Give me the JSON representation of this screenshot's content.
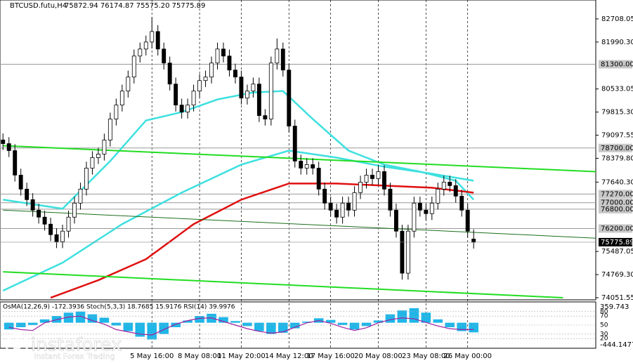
{
  "chart_data": {
    "type": "candlestick",
    "title": "BTCUSD.futu,H4",
    "header_prices": "75872.94 76174.87 75575.20 75775.89",
    "indicator_label": "OsMA(12,26,9) -172.3936 Stoch(5,3,3) 18.7685 15.9176 RSI(14) 39.9976",
    "watermark": "instaforex",
    "watermark_sub": "Instant Forex Trading",
    "xlim": [
      -0.5,
      99.5
    ],
    "xticks": [
      {
        "value": 25,
        "label": "5 May 16:00"
      },
      {
        "value": 33,
        "label": "8 May 08:00"
      },
      {
        "value": 40,
        "label": "11 May 20:00"
      },
      {
        "value": 48,
        "label": "14 May 12:00"
      },
      {
        "value": 55,
        "label": "17 May 16:00"
      },
      {
        "value": 63,
        "label": "20 May 08:00"
      },
      {
        "value": 71,
        "label": "23 May 08:00"
      },
      {
        "value": 78,
        "label": "26 May 00:00"
      }
    ],
    "ylim": [
      73986,
      83295
    ],
    "yticks": [
      82708.05,
      {
        "value": 81990.3,
        "label": "81990.30"
      },
      80533.05,
      {
        "value": 79815.3,
        "label": "79815.30"
      },
      79097.55,
      {
        "value": 78379.8,
        "label": "78379.80"
      },
      {
        "value": 77640.3,
        "label": "77640.30"
      },
      75487.05,
      {
        "value": 74769.3,
        "label": "74769.30"
      },
      74051.55
    ],
    "levels": [
      {
        "value": 81300,
        "label": "81300.00"
      },
      {
        "value": 78700,
        "label": "78700.00"
      },
      {
        "value": 77270,
        "label": "77270.00"
      },
      {
        "value": 77000,
        "label": "77000.00"
      },
      {
        "value": 76800,
        "label": "76800.00"
      },
      {
        "value": 76200,
        "label": "76200.00"
      }
    ],
    "current_price": 75775.89,
    "open": [
      78950,
      78836,
      78619,
      77858,
      77423,
      77096,
      76770,
      76553,
      76335,
      76009,
      75791,
      76118,
      76553,
      76988,
      77423,
      78075,
      78401,
      78510,
      78945,
      79598,
      80033,
      80468,
      80903,
      81555,
      81773,
      81990,
      82316,
      81773,
      81338,
      80685,
      80033,
      79815,
      80033,
      80468,
      80794,
      80903,
      81338,
      81773,
      81555,
      81120,
      80903,
      80250,
      80468,
      80685,
      79706,
      79598,
      81338,
      81773,
      81120,
      79380,
      78293,
      78075,
      78184,
      78075,
      77423,
      76988,
      76770,
      76553,
      76988,
      76770,
      77314,
      77640,
      77858,
      77749,
      77966,
      77423,
      76770,
      76118,
      74813,
      76118,
      76988,
      76770,
      76661,
      76988,
      77423,
      77640,
      77531,
      77205,
      76770,
      75872.94
    ],
    "high": [
      79150,
      79036,
      78819,
      78058,
      77623,
      77296,
      76970,
      76753,
      76535,
      76209,
      76318,
      76753,
      77188,
      77623,
      78275,
      78601,
      78710,
      79145,
      79798,
      80233,
      80668,
      81103,
      81755,
      81973,
      82190,
      82760,
      82516,
      81973,
      81538,
      80885,
      80233,
      80233,
      80668,
      80994,
      81103,
      81538,
      81973,
      81973,
      81755,
      81320,
      81103,
      80668,
      80885,
      80885,
      79906,
      81538,
      82100,
      81973,
      81320,
      79580,
      78493,
      78384,
      78384,
      78275,
      77623,
      77188,
      76970,
      77188,
      77188,
      77514,
      77840,
      78058,
      78058,
      78166,
      78166,
      77623,
      76970,
      76318,
      76318,
      77188,
      77188,
      76970,
      77188,
      77623,
      77840,
      77840,
      77731,
      77405,
      76970,
      76174.87
    ],
    "low": [
      78636,
      78419,
      77658,
      77223,
      76896,
      76570,
      76353,
      76135,
      75809,
      75591,
      75591,
      75918,
      76353,
      76788,
      77223,
      77875,
      78201,
      78310,
      78745,
      79398,
      79833,
      80268,
      80703,
      81355,
      81573,
      81790,
      81573,
      81138,
      80485,
      79833,
      79615,
      79615,
      79833,
      80268,
      80594,
      80703,
      81138,
      81355,
      80920,
      80703,
      80050,
      80050,
      80268,
      79506,
      79398,
      79398,
      81138,
      80920,
      79180,
      78093,
      77875,
      77875,
      77875,
      77223,
      76788,
      76570,
      76353,
      76353,
      76570,
      76570,
      77114,
      77440,
      77549,
      77549,
      77223,
      76570,
      75918,
      74613,
      74613,
      75918,
      76570,
      76461,
      76461,
      76788,
      77223,
      77331,
      77005,
      76570,
      75918,
      75575.2
    ],
    "close": [
      78836,
      78619,
      77858,
      77423,
      77096,
      76770,
      76553,
      76335,
      76009,
      75791,
      76118,
      76553,
      76988,
      77423,
      78075,
      78401,
      78510,
      78945,
      79598,
      80033,
      80468,
      80903,
      81555,
      81773,
      81990,
      82316,
      81773,
      81338,
      80685,
      80033,
      79815,
      80033,
      80468,
      80794,
      80903,
      81338,
      81773,
      81555,
      81120,
      80903,
      80250,
      80468,
      80685,
      79706,
      79598,
      81338,
      81773,
      81120,
      79380,
      78293,
      78075,
      78184,
      78075,
      77423,
      76988,
      76770,
      76553,
      76988,
      76770,
      77314,
      77640,
      77858,
      77749,
      77966,
      77423,
      76770,
      76118,
      74813,
      76118,
      76988,
      76770,
      76661,
      76988,
      77423,
      77640,
      77531,
      77205,
      76770,
      76118,
      75775.89
    ],
    "overlays": [
      {
        "color": "#3ee0e0",
        "width": 2.5,
        "x": [
          0,
          10,
          18,
          24,
          30,
          36,
          42,
          47,
          52,
          58,
          64,
          70,
          76,
          79
        ],
        "values": [
          77096,
          76814,
          78293,
          79554,
          79815,
          80207,
          80424,
          80468,
          79598,
          78619,
          78184,
          77966,
          77684,
          77096
        ]
      },
      {
        "color": "#3ee0e0",
        "width": 2.5,
        "x": [
          0,
          10,
          20,
          30,
          40,
          48,
          56,
          64,
          72,
          79
        ],
        "values": [
          74269,
          75139,
          76335,
          77314,
          78184,
          78619,
          78401,
          78119,
          77901,
          77684
        ]
      },
      {
        "color": "#e01010",
        "width": 2.5,
        "x": [
          8,
          16,
          24,
          32,
          40,
          48,
          56,
          64,
          72,
          79
        ],
        "values": [
          74051,
          74595,
          75248,
          76335,
          77096,
          77597,
          77597,
          77531,
          77466,
          77314
        ]
      },
      {
        "color": "#22dd22",
        "width": 2,
        "x": [
          0,
          99.5
        ],
        "values": [
          78771,
          77966
        ]
      },
      {
        "color": "#22dd22",
        "width": 2,
        "x": [
          0,
          94
        ],
        "values": [
          74856,
          74051
        ]
      },
      {
        "color": "#1a6e1a",
        "width": 1,
        "x": [
          0,
          99.5
        ],
        "values": [
          76770,
          75900
        ]
      }
    ],
    "osma": {
      "color": "#1fb6e8",
      "x": [
        1,
        3,
        5,
        7,
        9,
        11,
        13,
        15,
        17,
        19,
        21,
        23,
        25,
        27,
        29,
        31,
        33,
        35,
        37,
        39,
        41,
        43,
        45,
        47,
        49,
        51,
        53,
        55,
        57,
        59,
        61,
        63,
        65,
        67,
        69,
        71,
        73,
        75,
        77,
        79
      ],
      "values": [
        -120,
        -80,
        -40,
        60,
        120,
        180,
        200,
        150,
        90,
        -50,
        -150,
        -250,
        -300,
        -200,
        -80,
        40,
        120,
        160,
        100,
        30,
        -60,
        -150,
        -200,
        -180,
        -100,
        20,
        80,
        50,
        -40,
        -120,
        -60,
        40,
        150,
        220,
        260,
        180,
        60,
        -80,
        -150,
        -172.3936
      ],
      "ylim": [
        -444.1477,
        359.743
      ],
      "yticks": [
        359.743,
        -444.1477
      ]
    },
    "rsi": {
      "color": "#a020a0",
      "values": [
        45,
        40,
        38,
        55,
        62,
        68,
        70,
        60,
        52,
        40,
        35,
        30,
        28,
        40,
        52,
        60,
        65,
        66,
        58,
        50,
        42,
        36,
        32,
        35,
        45,
        55,
        60,
        54,
        45,
        38,
        44,
        55,
        62,
        66,
        64,
        56,
        48,
        42,
        40,
        39.9976
      ],
      "ylim": [
        0,
        100
      ],
      "yticks": [
        80,
        70,
        50,
        30,
        20
      ]
    }
  }
}
